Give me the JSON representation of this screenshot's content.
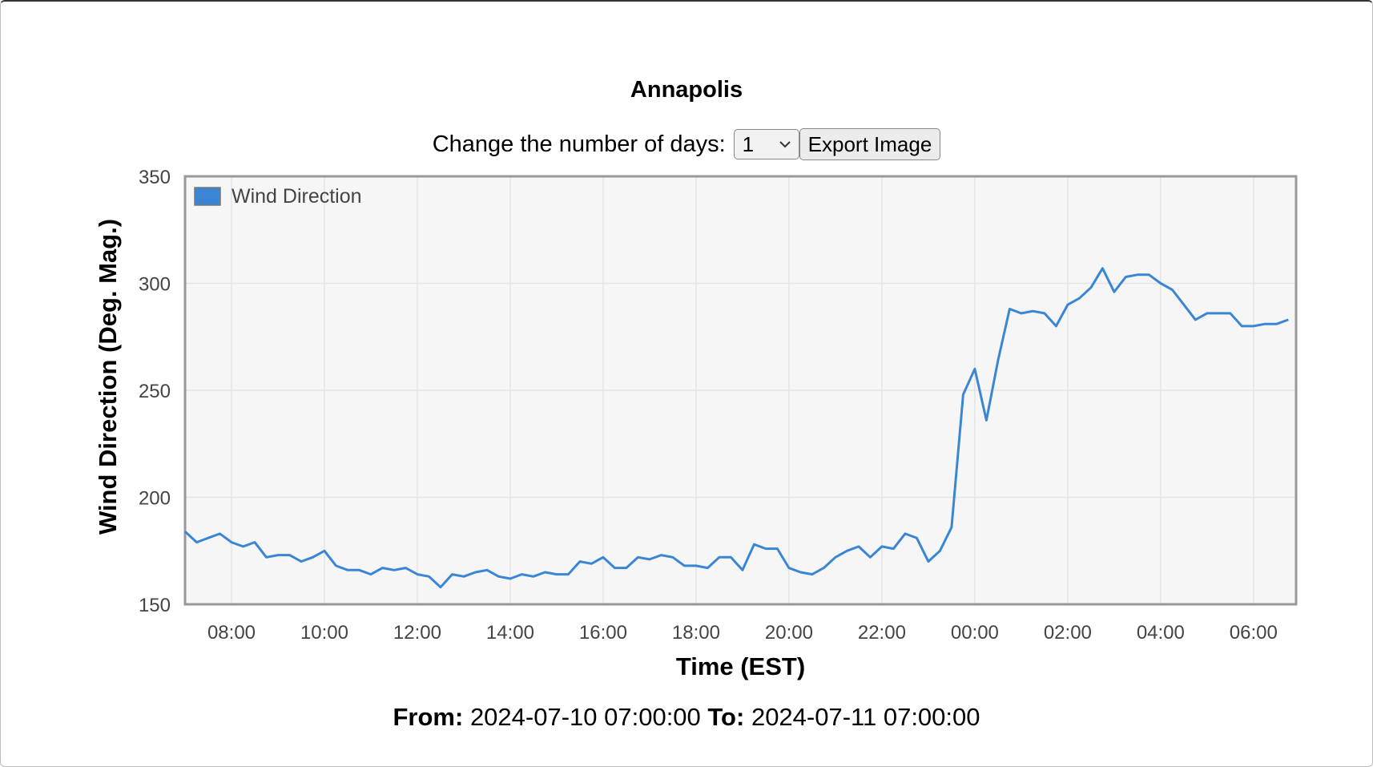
{
  "header": {
    "title": "Annapolis"
  },
  "controls": {
    "days_label": "Change the number of days:",
    "days_value": "1",
    "export_button": "Export Image"
  },
  "footer": {
    "from_label": "From:",
    "from_value": "2024-07-10 07:00:00",
    "to_label": "To:",
    "to_value": "2024-07-11 07:00:00"
  },
  "chart_data": {
    "type": "line",
    "x_label": "Time (EST)",
    "y_label": "Wind Direction (Deg. Mag.)",
    "grid": true,
    "legend": "top-left",
    "xlim": [
      "2024-07-10 07:00",
      "2024-07-11 06:55"
    ],
    "xticks": [
      {
        "value": "2024-07-10 08:00",
        "label": "08:00"
      },
      {
        "value": "2024-07-10 10:00",
        "label": "10:00"
      },
      {
        "value": "2024-07-10 12:00",
        "label": "12:00"
      },
      {
        "value": "2024-07-10 14:00",
        "label": "14:00"
      },
      {
        "value": "2024-07-10 16:00",
        "label": "16:00"
      },
      {
        "value": "2024-07-10 18:00",
        "label": "18:00"
      },
      {
        "value": "2024-07-10 20:00",
        "label": "20:00"
      },
      {
        "value": "2024-07-10 22:00",
        "label": "22:00"
      },
      {
        "value": "2024-07-11 00:00",
        "label": "00:00"
      },
      {
        "value": "2024-07-11 02:00",
        "label": "02:00"
      },
      {
        "value": "2024-07-11 04:00",
        "label": "04:00"
      },
      {
        "value": "2024-07-11 06:00",
        "label": "06:00"
      }
    ],
    "ylim": [
      150,
      350
    ],
    "yticks": [
      150,
      200,
      250,
      300,
      350
    ],
    "x": [
      "2024-07-10 07:00",
      "2024-07-10 07:15",
      "2024-07-10 07:30",
      "2024-07-10 07:45",
      "2024-07-10 08:00",
      "2024-07-10 08:15",
      "2024-07-10 08:30",
      "2024-07-10 08:45",
      "2024-07-10 09:00",
      "2024-07-10 09:15",
      "2024-07-10 09:30",
      "2024-07-10 09:45",
      "2024-07-10 10:00",
      "2024-07-10 10:15",
      "2024-07-10 10:30",
      "2024-07-10 10:45",
      "2024-07-10 11:00",
      "2024-07-10 11:15",
      "2024-07-10 11:30",
      "2024-07-10 11:45",
      "2024-07-10 12:00",
      "2024-07-10 12:15",
      "2024-07-10 12:30",
      "2024-07-10 12:45",
      "2024-07-10 13:00",
      "2024-07-10 13:15",
      "2024-07-10 13:30",
      "2024-07-10 13:45",
      "2024-07-10 14:00",
      "2024-07-10 14:15",
      "2024-07-10 14:30",
      "2024-07-10 14:45",
      "2024-07-10 15:00",
      "2024-07-10 15:15",
      "2024-07-10 15:30",
      "2024-07-10 15:45",
      "2024-07-10 16:00",
      "2024-07-10 16:15",
      "2024-07-10 16:30",
      "2024-07-10 16:45",
      "2024-07-10 17:00",
      "2024-07-10 17:15",
      "2024-07-10 17:30",
      "2024-07-10 17:45",
      "2024-07-10 18:00",
      "2024-07-10 18:15",
      "2024-07-10 18:30",
      "2024-07-10 18:45",
      "2024-07-10 19:00",
      "2024-07-10 19:15",
      "2024-07-10 19:30",
      "2024-07-10 19:45",
      "2024-07-10 20:00",
      "2024-07-10 20:15",
      "2024-07-10 20:30",
      "2024-07-10 20:45",
      "2024-07-10 21:00",
      "2024-07-10 21:15",
      "2024-07-10 21:30",
      "2024-07-10 21:45",
      "2024-07-10 22:00",
      "2024-07-10 22:15",
      "2024-07-10 22:30",
      "2024-07-10 22:45",
      "2024-07-10 23:00",
      "2024-07-10 23:15",
      "2024-07-10 23:30",
      "2024-07-10 23:45",
      "2024-07-11 00:00",
      "2024-07-11 00:15",
      "2024-07-11 00:30",
      "2024-07-11 00:45",
      "2024-07-11 01:00",
      "2024-07-11 01:15",
      "2024-07-11 01:30",
      "2024-07-11 01:45",
      "2024-07-11 02:00",
      "2024-07-11 02:15",
      "2024-07-11 02:30",
      "2024-07-11 02:45",
      "2024-07-11 03:00",
      "2024-07-11 03:15",
      "2024-07-11 03:30",
      "2024-07-11 03:45",
      "2024-07-11 04:00",
      "2024-07-11 04:15",
      "2024-07-11 04:30",
      "2024-07-11 04:45",
      "2024-07-11 05:00",
      "2024-07-11 05:15",
      "2024-07-11 05:30",
      "2024-07-11 05:45",
      "2024-07-11 06:00",
      "2024-07-11 06:15",
      "2024-07-11 06:30",
      "2024-07-11 06:45"
    ],
    "series": [
      {
        "name": "Wind Direction",
        "color": "#3a86d4",
        "values": [
          184,
          179,
          181,
          183,
          179,
          177,
          179,
          172,
          173,
          173,
          170,
          172,
          175,
          168,
          166,
          166,
          164,
          167,
          166,
          167,
          164,
          163,
          158,
          164,
          163,
          165,
          166,
          163,
          162,
          164,
          163,
          165,
          164,
          164,
          170,
          169,
          172,
          167,
          167,
          172,
          171,
          173,
          172,
          168,
          168,
          167,
          172,
          172,
          166,
          178,
          176,
          176,
          167,
          165,
          164,
          167,
          172,
          175,
          177,
          172,
          177,
          176,
          183,
          181,
          170,
          175,
          186,
          248,
          260,
          236,
          264,
          288,
          286,
          287,
          286,
          280,
          290,
          293,
          298,
          307,
          296,
          303,
          304,
          304,
          300,
          297,
          290,
          283,
          286,
          286,
          286,
          280,
          280,
          281,
          281,
          283
        ]
      }
    ]
  }
}
